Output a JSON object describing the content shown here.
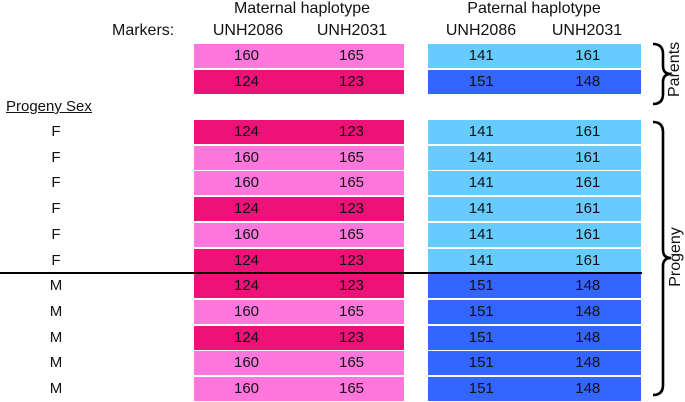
{
  "headers": {
    "markers_label": "Markers:",
    "maternal": "Maternal haplotype",
    "paternal": "Paternal haplotype",
    "marker_1": "UNH2086",
    "marker_2": "UNH2031",
    "progeny_sex": "Progeny Sex"
  },
  "side_labels": {
    "parents": "Parents",
    "progeny": "Progeny"
  },
  "colors": {
    "maternal_light": "#ff77dd",
    "maternal_dark": "#ee1177",
    "paternal_light": "#66ccff",
    "paternal_dark": "#3366ff"
  },
  "parents": [
    {
      "mat": [
        "160",
        "165"
      ],
      "mat_shade": "light",
      "pat": [
        "141",
        "161"
      ],
      "pat_shade": "light"
    },
    {
      "mat": [
        "124",
        "123"
      ],
      "mat_shade": "dark",
      "pat": [
        "151",
        "148"
      ],
      "pat_shade": "dark"
    }
  ],
  "progeny": [
    {
      "sex": "F",
      "mat": [
        "124",
        "123"
      ],
      "mat_shade": "dark",
      "pat": [
        "141",
        "161"
      ],
      "pat_shade": "light"
    },
    {
      "sex": "F",
      "mat": [
        "160",
        "165"
      ],
      "mat_shade": "light",
      "pat": [
        "141",
        "161"
      ],
      "pat_shade": "light"
    },
    {
      "sex": "F",
      "mat": [
        "160",
        "165"
      ],
      "mat_shade": "light",
      "pat": [
        "141",
        "161"
      ],
      "pat_shade": "light"
    },
    {
      "sex": "F",
      "mat": [
        "124",
        "123"
      ],
      "mat_shade": "dark",
      "pat": [
        "141",
        "161"
      ],
      "pat_shade": "light"
    },
    {
      "sex": "F",
      "mat": [
        "160",
        "165"
      ],
      "mat_shade": "light",
      "pat": [
        "141",
        "161"
      ],
      "pat_shade": "light"
    },
    {
      "sex": "F",
      "mat": [
        "124",
        "123"
      ],
      "mat_shade": "dark",
      "pat": [
        "141",
        "161"
      ],
      "pat_shade": "light"
    },
    {
      "sex": "M",
      "mat": [
        "124",
        "123"
      ],
      "mat_shade": "dark",
      "pat": [
        "151",
        "148"
      ],
      "pat_shade": "dark"
    },
    {
      "sex": "M",
      "mat": [
        "160",
        "165"
      ],
      "mat_shade": "light",
      "pat": [
        "151",
        "148"
      ],
      "pat_shade": "dark"
    },
    {
      "sex": "M",
      "mat": [
        "124",
        "123"
      ],
      "mat_shade": "dark",
      "pat": [
        "151",
        "148"
      ],
      "pat_shade": "dark"
    },
    {
      "sex": "M",
      "mat": [
        "160",
        "165"
      ],
      "mat_shade": "light",
      "pat": [
        "151",
        "148"
      ],
      "pat_shade": "dark"
    },
    {
      "sex": "M",
      "mat": [
        "160",
        "165"
      ],
      "mat_shade": "light",
      "pat": [
        "151",
        "148"
      ],
      "pat_shade": "dark"
    }
  ]
}
